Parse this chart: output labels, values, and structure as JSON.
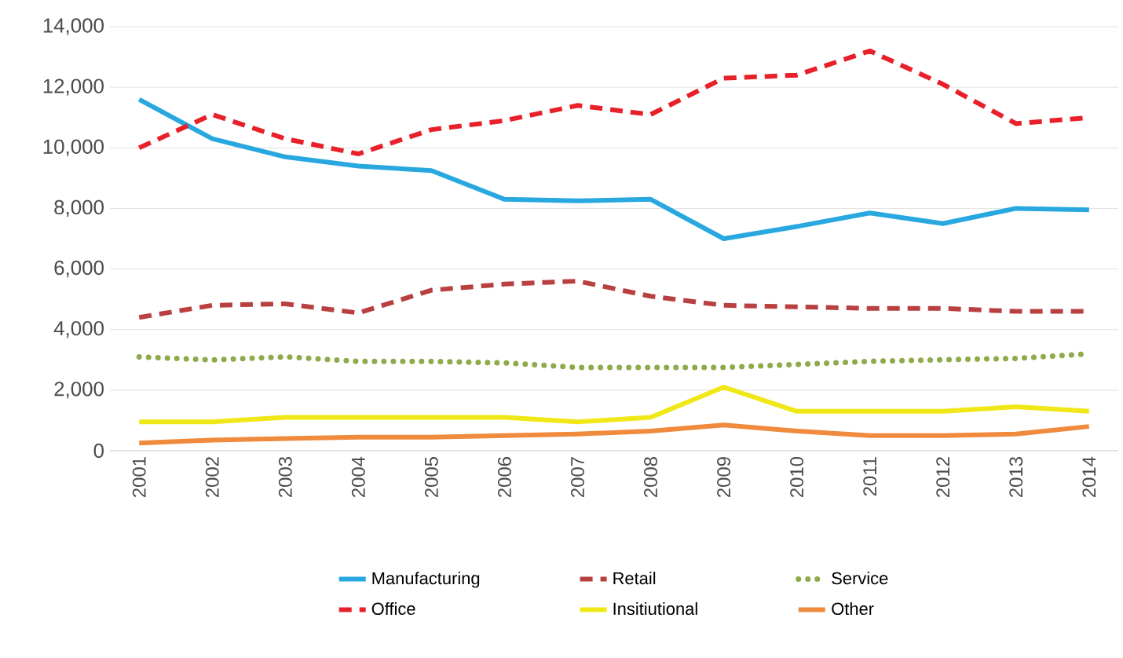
{
  "chart_data": {
    "type": "line",
    "categories": [
      "2001",
      "2002",
      "2003",
      "2004",
      "2005",
      "2006",
      "2007",
      "2008",
      "2009",
      "2010",
      "2011",
      "2012",
      "2013",
      "2014"
    ],
    "ylim": [
      0,
      14000
    ],
    "yticks": [
      0,
      {
        "value": 2000,
        "label": "2,000"
      },
      {
        "value": 4000,
        "label": "4,000"
      },
      {
        "value": 6000,
        "label": "6,000"
      },
      {
        "value": 8000,
        "label": "8,000"
      },
      {
        "value": 10000,
        "label": "10,000"
      },
      {
        "value": 12000,
        "label": "12,000"
      },
      {
        "value": 14000,
        "label": "14,000"
      }
    ],
    "grid": "y",
    "legend": "bottom",
    "series": [
      {
        "name": "Manufacturing",
        "color": "#29a8e0",
        "line_style": "solid",
        "values": [
          11600,
          10300,
          9700,
          9400,
          9250,
          8300,
          8250,
          8300,
          7000,
          7400,
          7850,
          7500,
          8000,
          7950
        ]
      },
      {
        "name": "Retail",
        "color": "#b94040",
        "line_style": "dashed",
        "values": [
          4400,
          4800,
          4850,
          4550,
          5300,
          5500,
          5600,
          5100,
          4800,
          4750,
          4700,
          4700,
          4600,
          4600
        ]
      },
      {
        "name": "Service",
        "color": "#8faa4a",
        "line_style": "dotted",
        "values": [
          3100,
          3000,
          3100,
          2950,
          2950,
          2900,
          2750,
          2750,
          2750,
          2850,
          2950,
          3000,
          3050,
          3200
        ]
      },
      {
        "name": "Office",
        "color": "#e8202a",
        "line_style": "dashed",
        "values": [
          10000,
          11100,
          10300,
          9800,
          10600,
          10900,
          11400,
          11100,
          12300,
          12400,
          13200,
          12100,
          10800,
          11000
        ]
      },
      {
        "name": "Insitiutional",
        "color": "#f0e816",
        "line_style": "solid",
        "values": [
          950,
          950,
          1100,
          1100,
          1100,
          1100,
          950,
          1100,
          2100,
          1300,
          1300,
          1300,
          1450,
          1300
        ]
      },
      {
        "name": "Other",
        "color": "#f08a3c",
        "line_style": "solid",
        "values": [
          250,
          350,
          400,
          450,
          450,
          500,
          550,
          650,
          850,
          650,
          500,
          500,
          550,
          800
        ]
      }
    ]
  }
}
